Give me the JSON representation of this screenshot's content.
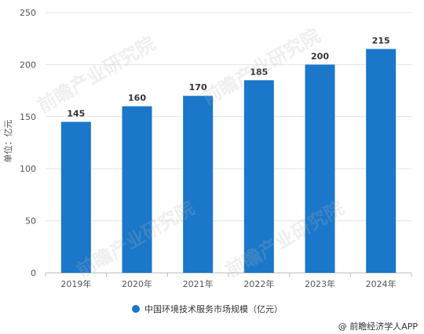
{
  "chart_data": {
    "type": "bar",
    "categories": [
      "2019年",
      "2020年",
      "2021年",
      "2022年",
      "2023年",
      "2024年"
    ],
    "series": [
      {
        "name": "中国环境技术服务市场规模（亿元）",
        "values": [
          145,
          160,
          170,
          185,
          200,
          215
        ],
        "color": "#1a77c9"
      }
    ],
    "ylabel": "单位：亿元",
    "ylim": [
      0,
      250
    ],
    "yticks": [
      0,
      50,
      100,
      150,
      200,
      250
    ],
    "grid": true,
    "legend_position": "bottom",
    "data_labels": [
      "145",
      "160",
      "170",
      "185",
      "200",
      "215"
    ]
  },
  "legend": {
    "label": "中国环境技术服务市场规模（亿元）",
    "color": "#1a77c9"
  },
  "credit": "@ 前瞻经济学人APP",
  "watermark": "前瞻产业研究院"
}
